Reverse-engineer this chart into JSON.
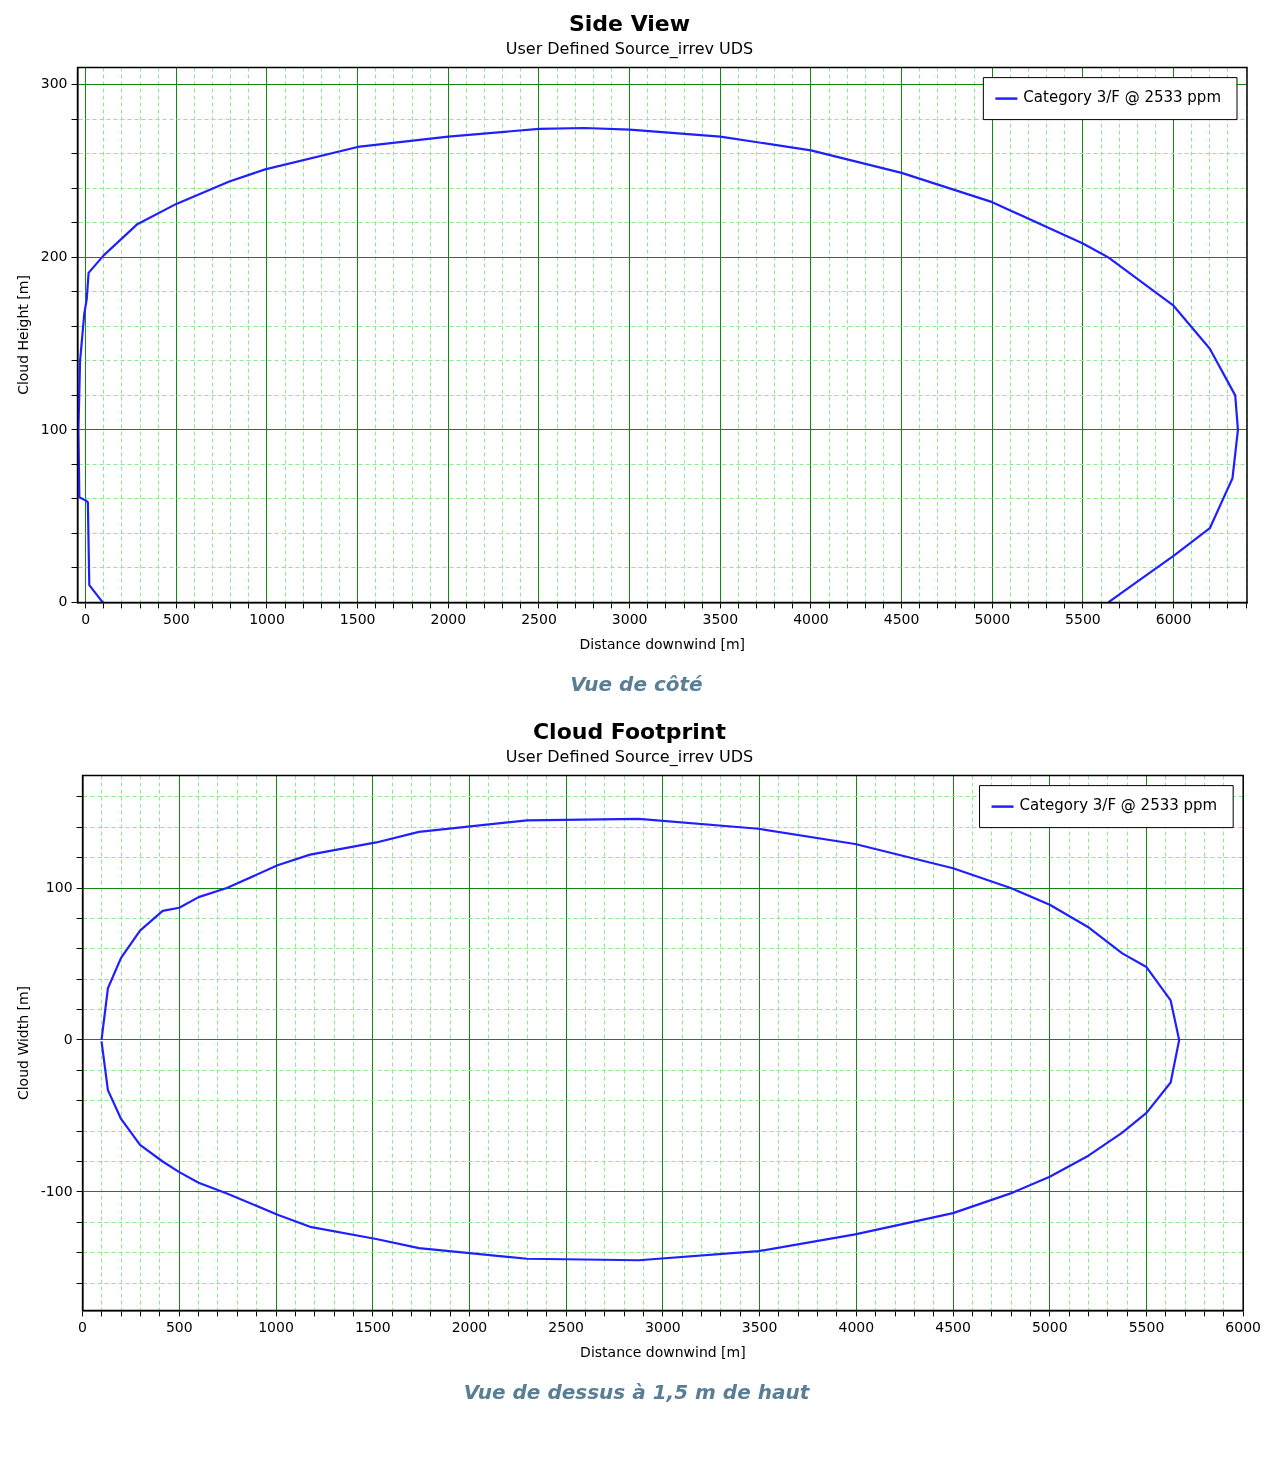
{
  "chart_data": [
    {
      "type": "line",
      "title": "Side View",
      "subtitle": "User Defined Source_irrev UDS",
      "xlabel": "Distance downwind [m]",
      "ylabel": "Cloud Height [m]",
      "annotations": [
        "Vue de côté"
      ],
      "grid": true,
      "legend": "top right",
      "xlim": [
        -45,
        6405
      ],
      "xticks": [
        0,
        {
          "value": 100,
          "label": null
        },
        {
          "value": 200,
          "label": null
        },
        {
          "value": 300,
          "label": null
        },
        {
          "value": 400,
          "label": null
        },
        500,
        {
          "value": 600,
          "label": null
        },
        {
          "value": 700,
          "label": null
        },
        {
          "value": 800,
          "label": null
        },
        {
          "value": 900,
          "label": null
        },
        1000,
        {
          "value": 1100,
          "label": null
        },
        {
          "value": 1200,
          "label": null
        },
        {
          "value": 1300,
          "label": null
        },
        {
          "value": 1400,
          "label": null
        },
        1500,
        {
          "value": 1600,
          "label": null
        },
        {
          "value": 1700,
          "label": null
        },
        {
          "value": 1800,
          "label": null
        },
        {
          "value": 1900,
          "label": null
        },
        2000,
        {
          "value": 2100,
          "label": null
        },
        {
          "value": 2200,
          "label": null
        },
        {
          "value": 2300,
          "label": null
        },
        {
          "value": 2400,
          "label": null
        },
        2500,
        {
          "value": 2600,
          "label": null
        },
        {
          "value": 2700,
          "label": null
        },
        {
          "value": 2800,
          "label": null
        },
        {
          "value": 2900,
          "label": null
        },
        3000,
        {
          "value": 3100,
          "label": null
        },
        {
          "value": 3200,
          "label": null
        },
        {
          "value": 3300,
          "label": null
        },
        {
          "value": 3400,
          "label": null
        },
        3500,
        {
          "value": 3600,
          "label": null
        },
        {
          "value": 3700,
          "label": null
        },
        {
          "value": 3800,
          "label": null
        },
        {
          "value": 3900,
          "label": null
        },
        4000,
        {
          "value": 4100,
          "label": null
        },
        {
          "value": 4200,
          "label": null
        },
        {
          "value": 4300,
          "label": null
        },
        {
          "value": 4400,
          "label": null
        },
        4500,
        {
          "value": 4600,
          "label": null
        },
        {
          "value": 4700,
          "label": null
        },
        {
          "value": 4800,
          "label": null
        },
        {
          "value": 4900,
          "label": null
        },
        5000,
        {
          "value": 5100,
          "label": null
        },
        {
          "value": 5200,
          "label": null
        },
        {
          "value": 5300,
          "label": null
        },
        {
          "value": 5400,
          "label": null
        },
        5500,
        {
          "value": 5600,
          "label": null
        },
        {
          "value": 5700,
          "label": null
        },
        {
          "value": 5800,
          "label": null
        },
        {
          "value": 5900,
          "label": null
        },
        6000,
        {
          "value": 6100,
          "label": null
        },
        {
          "value": 6200,
          "label": null
        },
        {
          "value": 6300,
          "label": null
        },
        {
          "value": 6400,
          "label": null
        }
      ],
      "ylim": [
        0,
        310
      ],
      "yticks": [
        0,
        {
          "value": 20,
          "label": null
        },
        {
          "value": 40,
          "label": null
        },
        {
          "value": 60,
          "label": null
        },
        {
          "value": 80,
          "label": null
        },
        100,
        {
          "value": 120,
          "label": null
        },
        {
          "value": 140,
          "label": null
        },
        {
          "value": 160,
          "label": null
        },
        {
          "value": 180,
          "label": null
        },
        200,
        {
          "value": 220,
          "label": null
        },
        {
          "value": 240,
          "label": null
        },
        {
          "value": 260,
          "label": null
        },
        {
          "value": 280,
          "label": null
        },
        300
      ],
      "series": [
        {
          "name": "Category 3/F @ 2533 ppm",
          "color": "#2020ff",
          "x": [
            94,
            20,
            12,
            2,
            -35,
            -40,
            -31,
            -8,
            6,
            16,
            98,
            282,
            500,
            792,
            990,
            1500,
            2000,
            2500,
            2750,
            3000,
            3500,
            4000,
            4500,
            5000,
            5500,
            5640,
            6000,
            6200,
            6340,
            6355,
            6325,
            6200,
            6000,
            5800,
            5640
          ],
          "values": [
            0,
            10,
            58,
            59,
            61,
            100,
            140,
            167,
            176,
            191,
            201,
            219,
            231,
            244,
            251,
            264,
            270,
            274.5,
            275,
            274,
            270,
            262,
            249,
            232,
            208,
            200,
            172,
            147,
            120,
            100,
            72,
            43,
            27,
            12,
            0
          ]
        }
      ]
    },
    {
      "type": "line",
      "title": "Cloud Footprint",
      "subtitle": "User Defined Source_irrev UDS",
      "xlabel": "Distance downwind [m]",
      "ylabel": "Cloud Width [m]",
      "annotations": [
        "Vue de dessus à 1,5 m de haut"
      ],
      "grid": true,
      "legend": "top right",
      "xlim": [
        0,
        6000
      ],
      "xticks": [
        0,
        {
          "value": 100,
          "label": null
        },
        {
          "value": 200,
          "label": null
        },
        {
          "value": 300,
          "label": null
        },
        {
          "value": 400,
          "label": null
        },
        500,
        {
          "value": 600,
          "label": null
        },
        {
          "value": 700,
          "label": null
        },
        {
          "value": 800,
          "label": null
        },
        {
          "value": 900,
          "label": null
        },
        1000,
        {
          "value": 1100,
          "label": null
        },
        {
          "value": 1200,
          "label": null
        },
        {
          "value": 1300,
          "label": null
        },
        {
          "value": 1400,
          "label": null
        },
        1500,
        {
          "value": 1600,
          "label": null
        },
        {
          "value": 1700,
          "label": null
        },
        {
          "value": 1800,
          "label": null
        },
        {
          "value": 1900,
          "label": null
        },
        2000,
        {
          "value": 2100,
          "label": null
        },
        {
          "value": 2200,
          "label": null
        },
        {
          "value": 2300,
          "label": null
        },
        {
          "value": 2400,
          "label": null
        },
        2500,
        {
          "value": 2600,
          "label": null
        },
        {
          "value": 2700,
          "label": null
        },
        {
          "value": 2800,
          "label": null
        },
        {
          "value": 2900,
          "label": null
        },
        3000,
        {
          "value": 3100,
          "label": null
        },
        {
          "value": 3200,
          "label": null
        },
        {
          "value": 3300,
          "label": null
        },
        {
          "value": 3400,
          "label": null
        },
        3500,
        {
          "value": 3600,
          "label": null
        },
        {
          "value": 3700,
          "label": null
        },
        {
          "value": 3800,
          "label": null
        },
        {
          "value": 3900,
          "label": null
        },
        4000,
        {
          "value": 4100,
          "label": null
        },
        {
          "value": 4200,
          "label": null
        },
        {
          "value": 4300,
          "label": null
        },
        {
          "value": 4400,
          "label": null
        },
        4500,
        {
          "value": 4600,
          "label": null
        },
        {
          "value": 4700,
          "label": null
        },
        {
          "value": 4800,
          "label": null
        },
        {
          "value": 4900,
          "label": null
        },
        5000,
        {
          "value": 5100,
          "label": null
        },
        {
          "value": 5200,
          "label": null
        },
        {
          "value": 5300,
          "label": null
        },
        {
          "value": 5400,
          "label": null
        },
        5500,
        {
          "value": 5600,
          "label": null
        },
        {
          "value": 5700,
          "label": null
        },
        {
          "value": 5800,
          "label": null
        },
        {
          "value": 5900,
          "label": null
        },
        6000
      ],
      "ylim": [
        -178,
        174
      ],
      "yticks": [
        {
          "value": -160,
          "label": null
        },
        {
          "value": -140,
          "label": null
        },
        {
          "value": -120,
          "label": null
        },
        -100,
        {
          "value": -80,
          "label": null
        },
        {
          "value": -60,
          "label": null
        },
        {
          "value": -40,
          "label": null
        },
        {
          "value": -20,
          "label": null
        },
        0,
        {
          "value": 20,
          "label": null
        },
        {
          "value": 40,
          "label": null
        },
        {
          "value": 60,
          "label": null
        },
        {
          "value": 80,
          "label": null
        },
        100,
        {
          "value": 120,
          "label": null
        },
        {
          "value": 140,
          "label": null
        },
        {
          "value": 160,
          "label": null
        }
      ],
      "series": [
        {
          "name": "Category 3/F @ 2533 ppm",
          "color": "#2020ff",
          "x": [
            98,
            131,
            199,
            297,
            414,
            500,
            600,
            746,
            1008,
            1176,
            1518,
            1739,
            2298,
            2876,
            3494,
            3994,
            4500,
            4798,
            5000,
            5202,
            5375,
            5500,
            5625,
            5669,
            5625,
            5500,
            5375,
            5202,
            5000,
            4798,
            4500,
            3994,
            3494,
            2876,
            2298,
            1739,
            1518,
            1176,
            1008,
            746,
            600,
            500,
            414,
            297,
            199,
            131,
            98
          ],
          "values": [
            0,
            34,
            54,
            72,
            85,
            87,
            94,
            100,
            115,
            122,
            130,
            137,
            144.5,
            145.5,
            139,
            129,
            113,
            100,
            89,
            74,
            57,
            48,
            26,
            0,
            -28,
            -48,
            -61,
            -76,
            -90,
            -101,
            -114,
            -128,
            -139,
            -145,
            -144,
            -137,
            -131,
            -123,
            -115,
            -101,
            -94,
            -87,
            -80,
            -69,
            -52,
            -33,
            -1
          ]
        }
      ]
    }
  ]
}
